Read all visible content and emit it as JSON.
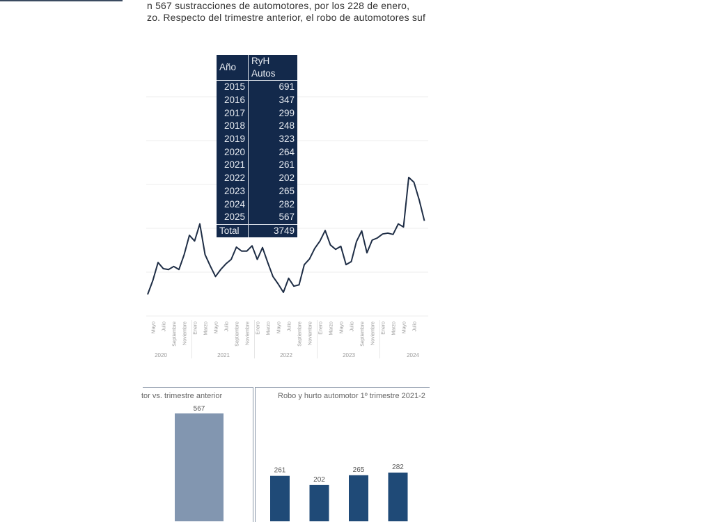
{
  "paragraph": {
    "line1": "n 567 sustracciones de automotores, por los 228 de enero,",
    "line2": "zo. Respecto del trimestre anterior, el robo de automotores suf"
  },
  "table": {
    "headers": [
      "Año",
      "RyH Autos"
    ],
    "rows": [
      [
        "2015",
        "691"
      ],
      [
        "2016",
        "347"
      ],
      [
        "2017",
        "299"
      ],
      [
        "2018",
        "248"
      ],
      [
        "2019",
        "323"
      ],
      [
        "2020",
        "264"
      ],
      [
        "2021",
        "261"
      ],
      [
        "2022",
        "202"
      ],
      [
        "2023",
        "265"
      ],
      [
        "2024",
        "282"
      ],
      [
        "2025",
        "567"
      ]
    ],
    "total_label": "Total",
    "total_value": "3749"
  },
  "chart_data": [
    {
      "type": "line",
      "title": "",
      "ylabel": "",
      "y_axis_labels_shown": false,
      "grid": true,
      "ylim": [
        0,
        5
      ],
      "color": "#1e2d45",
      "x_start": "2020-04",
      "values": [
        0.49,
        0.81,
        1.22,
        1.08,
        1.06,
        1.13,
        1.06,
        1.4,
        1.84,
        1.71,
        2.1,
        1.4,
        1.14,
        0.9,
        1.06,
        1.19,
        1.29,
        1.57,
        1.48,
        1.48,
        1.6,
        1.29,
        1.56,
        1.22,
        0.9,
        0.73,
        0.54,
        0.86,
        0.68,
        0.71,
        1.17,
        1.3,
        1.54,
        1.71,
        1.95,
        1.62,
        1.52,
        1.59,
        1.17,
        1.24,
        1.7,
        1.94,
        1.44,
        1.73,
        1.78,
        1.87,
        1.89,
        1.86,
        2.1,
        2.03,
        3.16,
        3.05,
        2.65,
        2.17
      ],
      "month_ticks": [
        {
          "label": "Mayo",
          "year": 2020,
          "month": 5
        },
        {
          "label": "Julio",
          "year": 2020,
          "month": 7
        },
        {
          "label": "Septiembre",
          "year": 2020,
          "month": 9
        },
        {
          "label": "Noviembre",
          "year": 2020,
          "month": 11
        },
        {
          "label": "Enero",
          "year": 2021,
          "month": 1
        },
        {
          "label": "Marzo",
          "year": 2021,
          "month": 3
        },
        {
          "label": "Mayo",
          "year": 2021,
          "month": 5
        },
        {
          "label": "Julio",
          "year": 2021,
          "month": 7
        },
        {
          "label": "Septiembre",
          "year": 2021,
          "month": 9
        },
        {
          "label": "Noviembre",
          "year": 2021,
          "month": 11
        },
        {
          "label": "Enero",
          "year": 2022,
          "month": 1
        },
        {
          "label": "Marzo",
          "year": 2022,
          "month": 3
        },
        {
          "label": "Mayo",
          "year": 2022,
          "month": 5
        },
        {
          "label": "Julio",
          "year": 2022,
          "month": 7
        },
        {
          "label": "Septiembre",
          "year": 2022,
          "month": 9
        },
        {
          "label": "Noviembre",
          "year": 2022,
          "month": 11
        },
        {
          "label": "Enero",
          "year": 2023,
          "month": 1
        },
        {
          "label": "Marzo",
          "year": 2023,
          "month": 3
        },
        {
          "label": "Mayo",
          "year": 2023,
          "month": 5
        },
        {
          "label": "Julio",
          "year": 2023,
          "month": 7
        },
        {
          "label": "Septiembre",
          "year": 2023,
          "month": 9
        },
        {
          "label": "Noviembre",
          "year": 2023,
          "month": 11
        },
        {
          "label": "Enero",
          "year": 2024,
          "month": 1
        },
        {
          "label": "Marzo",
          "year": 2024,
          "month": 3
        },
        {
          "label": "Mayo",
          "year": 2024,
          "month": 5
        },
        {
          "label": "Julio",
          "year": 2024,
          "month": 7
        }
      ],
      "year_labels": [
        "2020",
        "2021",
        "2022",
        "2023",
        "2024"
      ]
    },
    {
      "type": "bar",
      "title": "tor vs. trimestre anterior",
      "values": [
        567
      ],
      "data_labels": [
        "567"
      ],
      "color": "#8296b0"
    },
    {
      "type": "bar",
      "title": "Robo y hurto automotor 1º trimestre 2021-2",
      "values": [
        261,
        202,
        265,
        282
      ],
      "data_labels": [
        "261",
        "202",
        "265",
        "282"
      ],
      "color": "#1f4a77"
    }
  ]
}
